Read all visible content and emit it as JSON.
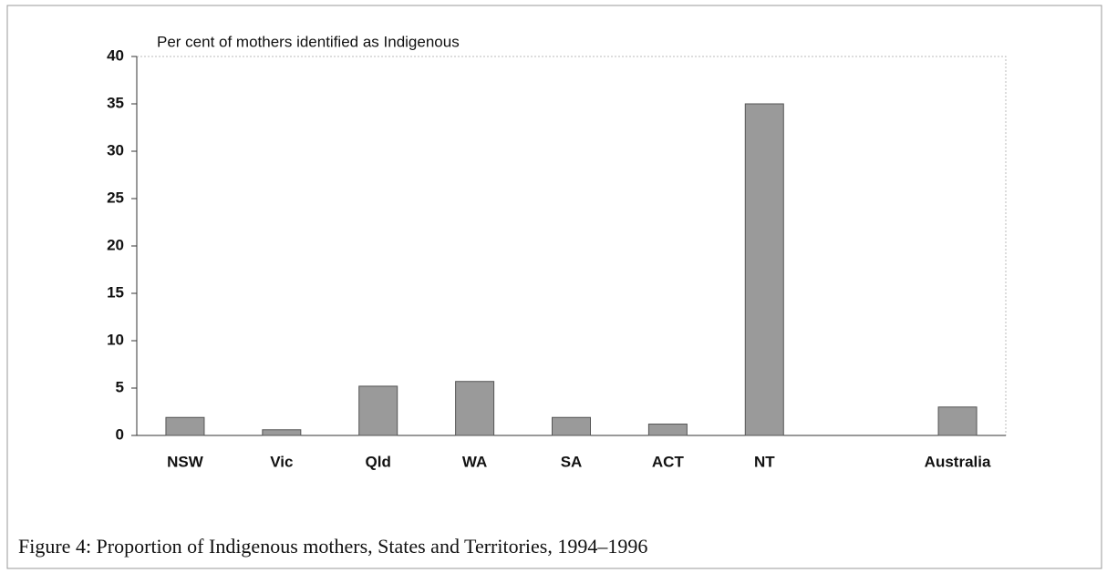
{
  "chart_data": {
    "type": "bar",
    "y_label": "Per cent of mothers identified as Indigenous",
    "caption": "Figure 4: Proportion of Indigenous mothers, States and Territories, 1994–1996",
    "categories": [
      "NSW",
      "Vic",
      "Qld",
      "WA",
      "SA",
      "ACT",
      "NT",
      null,
      "Australia"
    ],
    "values": [
      1.9,
      0.6,
      5.2,
      5.7,
      1.9,
      1.2,
      35,
      null,
      3.0
    ],
    "color": "#9a9a9a",
    "ylim": [
      0,
      40
    ],
    "yticks": [
      0,
      5,
      10,
      15,
      20,
      25,
      30,
      35,
      40
    ],
    "grid": false
  }
}
